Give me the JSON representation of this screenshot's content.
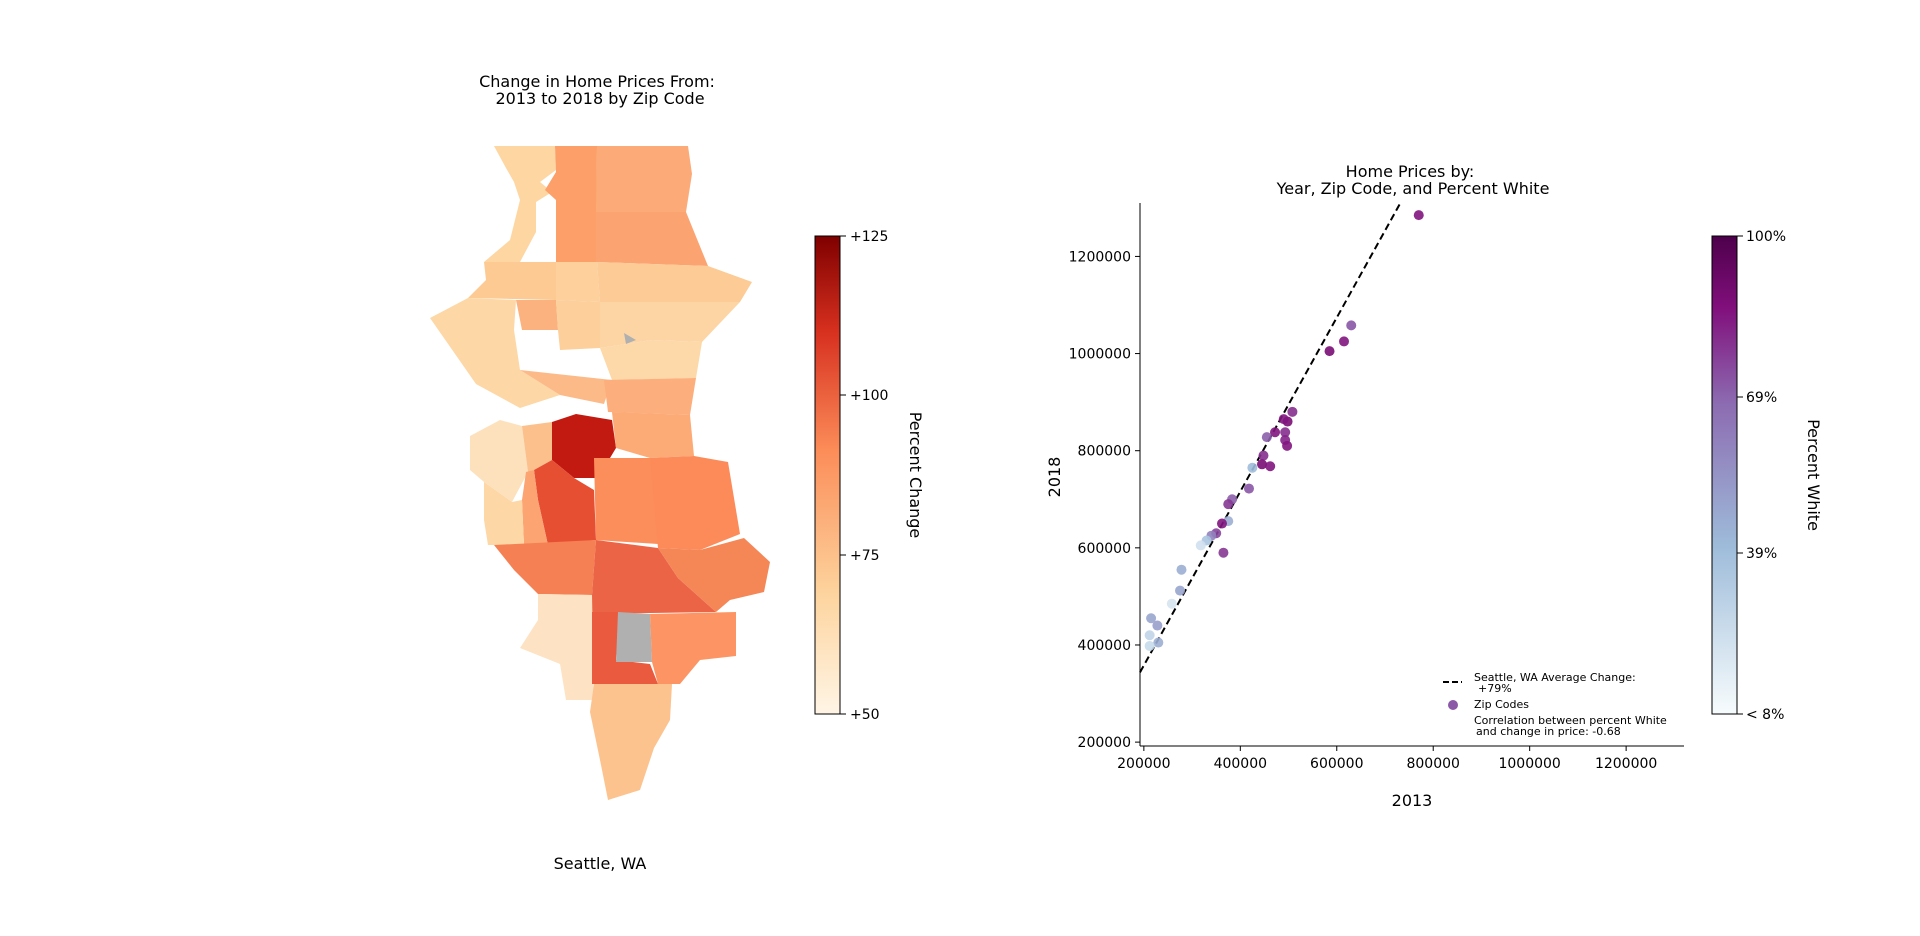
{
  "map_panel": {
    "title_line1": "Change in Home Prices From:",
    "title_line2": "2013 to 2018 by Zip Code",
    "xlabel": "Seattle, WA",
    "colorbar": {
      "label": "Percent Change",
      "ticks": [
        "+125",
        "+100",
        "+75",
        "+50"
      ],
      "range": [
        50,
        125
      ],
      "colors": [
        "#fff5e6",
        "#fdd49e",
        "#fc8d59",
        "#d7301f",
        "#7f0000"
      ]
    },
    "missing_color": "#b0b0b0"
  },
  "chart_data": {
    "type": "scatter",
    "title_line1": "Home Prices by:",
    "title_line2": "Year, Zip Code, and Percent White",
    "xlabel": "2013",
    "ylabel": "2018",
    "xlim": [
      192000,
      1320000
    ],
    "ylim": [
      192000,
      1310000
    ],
    "xticks": [
      200000,
      400000,
      600000,
      800000,
      1000000,
      1200000
    ],
    "yticks": [
      200000,
      400000,
      600000,
      800000,
      1000000,
      1200000
    ],
    "xtick_labels": [
      "200000",
      "400000",
      "600000",
      "800000",
      "1000000",
      "1200000"
    ],
    "ytick_labels": [
      "200000",
      "400000",
      "600000",
      "800000",
      "1000000",
      "1200000"
    ],
    "trend_line": {
      "slope": 1.79,
      "style": "dashed",
      "color": "#000000"
    },
    "legend": {
      "position": "lower-right",
      "line_label_1": "Seattle, WA Average Change:",
      "line_label_2": "+79%",
      "points_label": "Zip Codes",
      "note_line1": "Correlation between percent White",
      "note_line2": "and change in price: -0.68"
    },
    "colorbar": {
      "label": "Percent White",
      "ticks": [
        "100%",
        "69%",
        "39%",
        "< 8%"
      ],
      "range": [
        8,
        100
      ],
      "colors": [
        "#f7fcfd",
        "#9ebcda",
        "#8c6bb1",
        "#810f7c",
        "#4d004b"
      ]
    },
    "points": [
      {
        "x": 770000,
        "y": 1285000,
        "w": 85
      },
      {
        "x": 630000,
        "y": 1058000,
        "w": 72
      },
      {
        "x": 615000,
        "y": 1025000,
        "w": 85
      },
      {
        "x": 585000,
        "y": 1005000,
        "w": 88
      },
      {
        "x": 508000,
        "y": 880000,
        "w": 80
      },
      {
        "x": 498000,
        "y": 860000,
        "w": 88
      },
      {
        "x": 490000,
        "y": 865000,
        "w": 85
      },
      {
        "x": 493000,
        "y": 838000,
        "w": 80
      },
      {
        "x": 472000,
        "y": 838000,
        "w": 85
      },
      {
        "x": 455000,
        "y": 828000,
        "w": 70
      },
      {
        "x": 493000,
        "y": 822000,
        "w": 82
      },
      {
        "x": 497000,
        "y": 810000,
        "w": 85
      },
      {
        "x": 448000,
        "y": 790000,
        "w": 80
      },
      {
        "x": 445000,
        "y": 772000,
        "w": 88
      },
      {
        "x": 462000,
        "y": 768000,
        "w": 85
      },
      {
        "x": 425000,
        "y": 765000,
        "w": 40
      },
      {
        "x": 418000,
        "y": 722000,
        "w": 72
      },
      {
        "x": 383000,
        "y": 700000,
        "w": 70
      },
      {
        "x": 375000,
        "y": 690000,
        "w": 78
      },
      {
        "x": 375000,
        "y": 655000,
        "w": 45
      },
      {
        "x": 362000,
        "y": 650000,
        "w": 85
      },
      {
        "x": 350000,
        "y": 630000,
        "w": 75
      },
      {
        "x": 340000,
        "y": 625000,
        "w": 60
      },
      {
        "x": 330000,
        "y": 615000,
        "w": 35
      },
      {
        "x": 318000,
        "y": 605000,
        "w": 22
      },
      {
        "x": 365000,
        "y": 590000,
        "w": 78
      },
      {
        "x": 278000,
        "y": 555000,
        "w": 45
      },
      {
        "x": 275000,
        "y": 512000,
        "w": 48
      },
      {
        "x": 258000,
        "y": 485000,
        "w": 20
      },
      {
        "x": 215000,
        "y": 455000,
        "w": 48
      },
      {
        "x": 228000,
        "y": 440000,
        "w": 50
      },
      {
        "x": 212000,
        "y": 420000,
        "w": 28
      },
      {
        "x": 230000,
        "y": 405000,
        "w": 45
      },
      {
        "x": 212000,
        "y": 398000,
        "w": 25
      }
    ]
  }
}
